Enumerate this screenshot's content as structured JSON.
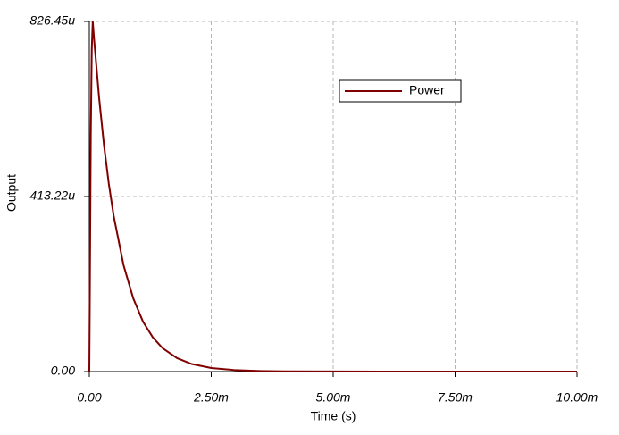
{
  "chart_data": {
    "type": "line",
    "xlabel": "Time (s)",
    "ylabel": "Output",
    "x": [
      0,
      1e-05,
      3e-05,
      5e-05,
      7e-05,
      0.0001,
      0.0002,
      0.0003,
      0.0004,
      0.0005,
      0.0007,
      0.0009,
      0.0011,
      0.0013,
      0.0015,
      0.0018,
      0.0021,
      0.0025,
      0.003,
      0.0035,
      0.004,
      0.006,
      0.008,
      0.01
    ],
    "series": [
      {
        "name": "Power",
        "color": "#800000",
        "values": [
          0,
          0.00018,
          0.00056,
          0.00076,
          0.00082645,
          0.000781,
          0.000647,
          0.000535,
          0.000443,
          0.000367,
          0.000252,
          0.000173,
          0.000118,
          8.1e-05,
          5.55e-05,
          3.17e-05,
          1.79e-05,
          8.5e-06,
          3.3e-06,
          1.3e-06,
          5e-07,
          0,
          0,
          0
        ]
      }
    ],
    "xlim": [
      0,
      0.01
    ],
    "xticks": [
      {
        "value": 0,
        "label": "0.00"
      },
      {
        "value": 0.0025,
        "label": "2.50m"
      },
      {
        "value": 0.005,
        "label": "5.00m"
      },
      {
        "value": 0.0075,
        "label": "7.50m"
      },
      {
        "value": 0.01,
        "label": "10.00m"
      }
    ],
    "ylim": [
      0,
      0.00082645
    ],
    "yticks": [
      {
        "value": 0,
        "label": "0.00"
      },
      {
        "value": 0.00041322,
        "label": "413.22u"
      },
      {
        "value": 0.00082645,
        "label": "826.45u"
      }
    ],
    "grid": true,
    "legend": "upper right"
  }
}
